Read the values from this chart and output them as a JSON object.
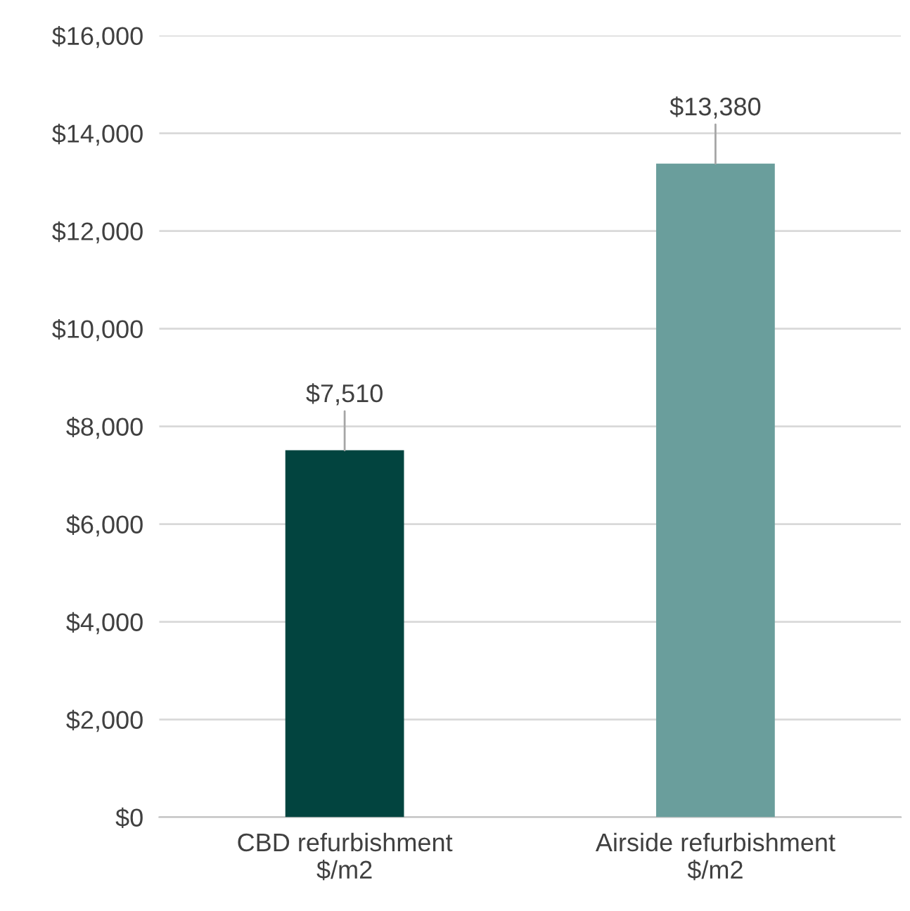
{
  "chart_data": {
    "type": "bar",
    "categories": [
      "CBD refurbishment\n$/m2",
      "Airside refurbishment\n$/m2"
    ],
    "values": [
      7510,
      13380
    ],
    "colors": [
      "#02443f",
      "#6a9e9c"
    ],
    "value_labels": [
      "$7,510",
      "$13,380"
    ],
    "ylim": [
      0,
      16000
    ],
    "yticks": [
      {
        "value": 0,
        "label": "$0"
      },
      {
        "value": 2000,
        "label": "$2,000"
      },
      {
        "value": 4000,
        "label": "$4,000"
      },
      {
        "value": 6000,
        "label": "$6,000"
      },
      {
        "value": 8000,
        "label": "$8,000"
      },
      {
        "value": 10000,
        "label": "$10,000"
      },
      {
        "value": 12000,
        "label": "$12,000"
      },
      {
        "value": 14000,
        "label": "$14,000"
      },
      {
        "value": 16000,
        "label": "$16,000"
      }
    ],
    "grid": "y",
    "legend": false
  }
}
